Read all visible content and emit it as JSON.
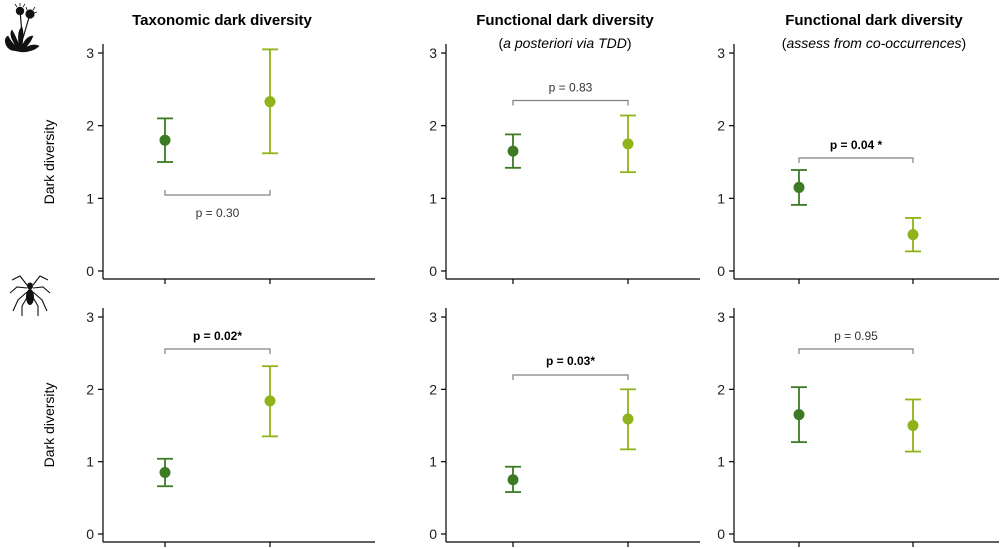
{
  "colors": {
    "dark_green": "#3c7a24",
    "light_green": "#8fb31a",
    "bracket": "#808080",
    "axis": "#000000"
  },
  "row_icons": [
    "dandelion-plant-icon",
    "spider-icon"
  ],
  "column_titles": [
    {
      "title": "Taxonomic dark diversity",
      "subtitle": ""
    },
    {
      "title": "Functional dark diversity",
      "subtitle": "a posteriori via TDD",
      "subtitle_italic_only": true
    },
    {
      "title": "Functional dark diversity",
      "subtitle": "assess from co-occurrences",
      "subtitle_italic_only": true
    }
  ],
  "y_axis_label": "Dark diversity",
  "chart_data": [
    {
      "type": "errorbar",
      "row": 0,
      "col": 0,
      "ylim": [
        0,
        3
      ],
      "yticks": [
        "0",
        "1",
        "2",
        "3"
      ],
      "series": [
        {
          "mean": 1.8,
          "lower": 1.5,
          "upper": 2.1
        },
        {
          "mean": 2.33,
          "lower": 1.62,
          "upper": 3.05
        }
      ],
      "p_label": "p = 0.30",
      "p_bold": false,
      "bracket_position": "below"
    },
    {
      "type": "errorbar",
      "row": 0,
      "col": 1,
      "ylim": [
        0,
        3
      ],
      "yticks": [
        "0",
        "1",
        "2",
        "3"
      ],
      "series": [
        {
          "mean": 1.65,
          "lower": 1.42,
          "upper": 1.88
        },
        {
          "mean": 1.75,
          "lower": 1.36,
          "upper": 2.14
        }
      ],
      "p_label": "p = 0.83",
      "p_bold": false,
      "bracket_position": "above"
    },
    {
      "type": "errorbar",
      "row": 0,
      "col": 2,
      "ylim": [
        0,
        3
      ],
      "yticks": [
        "0",
        "1",
        "2",
        "3"
      ],
      "series": [
        {
          "mean": 1.15,
          "lower": 0.91,
          "upper": 1.39
        },
        {
          "mean": 0.5,
          "lower": 0.27,
          "upper": 0.73
        }
      ],
      "p_label": "p = 0.04 *",
      "p_bold": true,
      "bracket_position": "above"
    },
    {
      "type": "errorbar",
      "row": 1,
      "col": 0,
      "ylim": [
        0,
        3
      ],
      "yticks": [
        "0",
        "1",
        "2",
        "3"
      ],
      "series": [
        {
          "mean": 0.85,
          "lower": 0.66,
          "upper": 1.04
        },
        {
          "mean": 1.84,
          "lower": 1.35,
          "upper": 2.32
        }
      ],
      "p_label": "p = 0.02*",
      "p_bold": true,
      "bracket_position": "above"
    },
    {
      "type": "errorbar",
      "row": 1,
      "col": 1,
      "ylim": [
        0,
        3
      ],
      "yticks": [
        "0",
        "1",
        "2",
        "3"
      ],
      "series": [
        {
          "mean": 0.75,
          "lower": 0.58,
          "upper": 0.93
        },
        {
          "mean": 1.59,
          "lower": 1.17,
          "upper": 2.0
        }
      ],
      "p_label": "p = 0.03*",
      "p_bold": true,
      "bracket_position": "above"
    },
    {
      "type": "errorbar",
      "row": 1,
      "col": 2,
      "ylim": [
        0,
        3
      ],
      "yticks": [
        "0",
        "1",
        "2",
        "3"
      ],
      "series": [
        {
          "mean": 1.65,
          "lower": 1.27,
          "upper": 2.03
        },
        {
          "mean": 1.5,
          "lower": 1.14,
          "upper": 1.86
        }
      ],
      "p_label": "p = 0.95",
      "p_bold": false,
      "bracket_position": "above"
    }
  ]
}
